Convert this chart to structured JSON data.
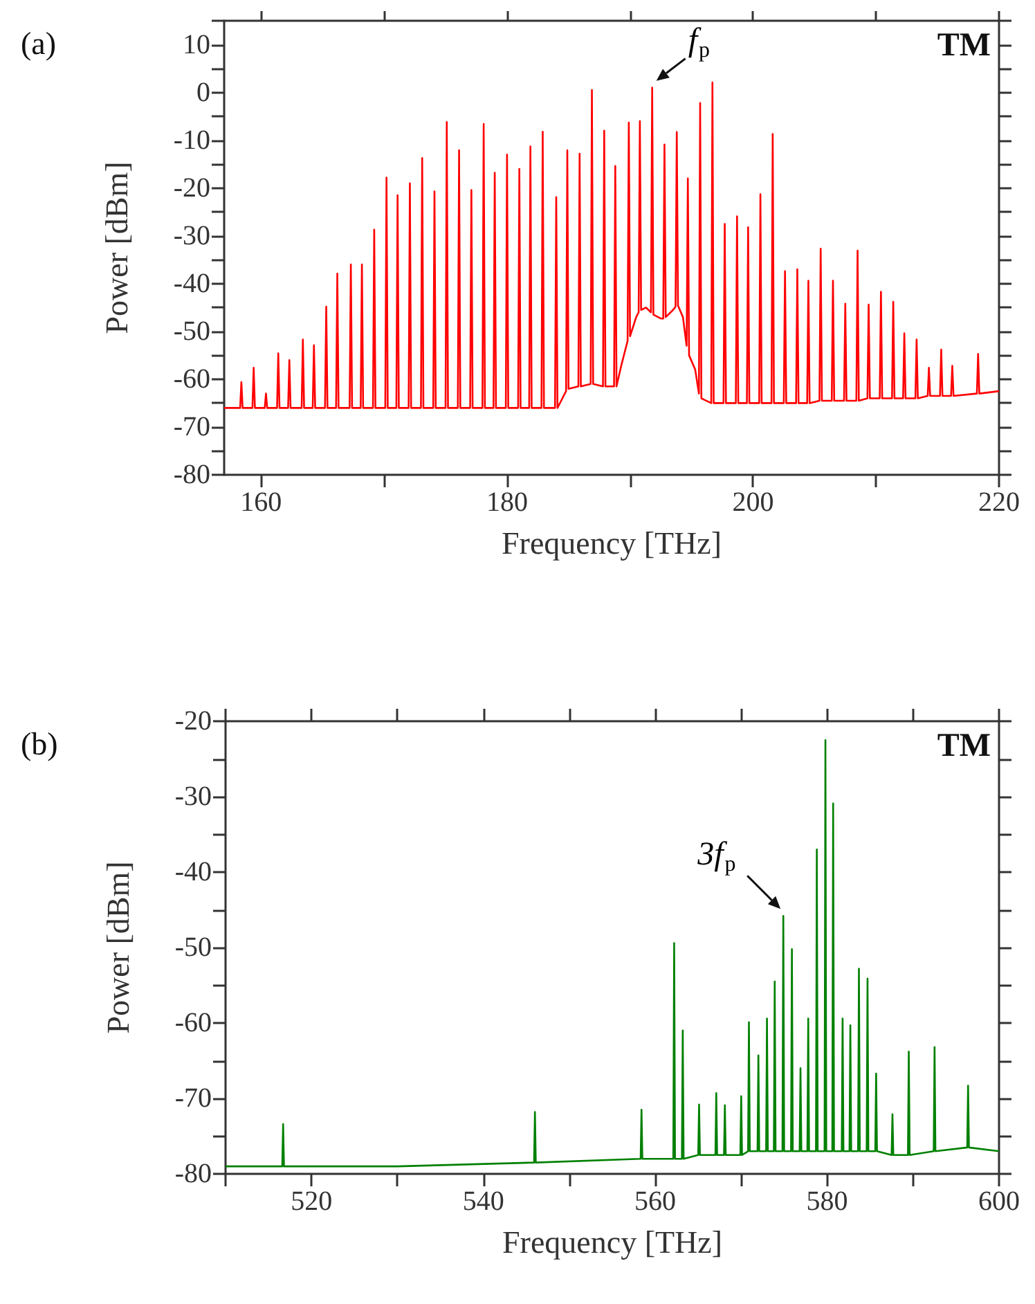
{
  "chart_data": [
    {
      "type": "line",
      "title": "(a)",
      "xlabel": "Frequency [THz]",
      "ylabel": "Power [dBm]",
      "xlim": [
        157,
        220
      ],
      "ylim": [
        -80,
        15
      ],
      "xticks": [
        160,
        {
          "value": 170,
          "label": null
        },
        180,
        {
          "value": 190,
          "label": null
        },
        200,
        {
          "value": 210,
          "label": null
        },
        220
      ],
      "yticks": [
        -80,
        {
          "value": -75,
          "label": null
        },
        -70,
        {
          "value": -65,
          "label": null
        },
        -60,
        {
          "value": -55,
          "label": null
        },
        -50,
        {
          "value": -45,
          "label": null
        },
        -40,
        {
          "value": -35,
          "label": null
        },
        -30,
        {
          "value": -25,
          "label": null
        },
        -20,
        {
          "value": -15,
          "label": null
        },
        -10,
        {
          "value": -5,
          "label": null
        },
        0,
        {
          "value": 5,
          "label": null
        },
        10,
        {
          "value": 15,
          "label": null
        }
      ],
      "annotations": [
        "TM",
        {
          "text": "f$_{p}$",
          "x": 191.8,
          "y": 1
        }
      ],
      "series": [
        {
          "color": "#ff0000",
          "x": [
            157,
            158.3,
            158.4,
            158.5,
            159.3,
            159.4,
            159.5,
            160.3,
            160.4,
            160.5,
            161.3,
            161.4,
            161.5,
            162.2,
            162.3,
            162.4,
            163.3,
            163.4,
            163.5,
            164.2,
            164.3,
            164.4,
            165.2,
            165.3,
            165.4,
            166.1,
            166.2,
            166.3,
            167.2,
            167.3,
            167.4,
            168.1,
            168.2,
            168.3,
            169.1,
            169.2,
            169.3,
            170.1,
            170.2,
            170.3,
            171,
            171.1,
            171.2,
            172,
            172.1,
            172.2,
            173,
            173.1,
            173.2,
            174,
            174.1,
            174.2,
            175,
            175.1,
            175.2,
            176,
            176.1,
            176.2,
            177,
            177.1,
            177.2,
            178,
            178.1,
            178.2,
            178.9,
            179,
            179.1,
            179.9,
            180,
            180.1,
            180.9,
            181,
            181.1,
            181.8,
            181.9,
            182,
            182.8,
            182.9,
            183,
            183.9,
            184,
            184.1,
            184.5,
            184.8,
            184.9,
            185,
            185.8,
            185.9,
            186,
            186.8,
            186.9,
            187,
            187.8,
            187.9,
            188,
            188.7,
            188.8,
            188.9,
            189.3,
            189.8,
            189.9,
            190,
            190.5,
            190.7,
            190.8,
            190.9,
            191.3,
            191.7,
            191.8,
            191.9,
            192.5,
            192.7,
            192.8,
            192.9,
            193.5,
            193.7,
            193.8,
            193.9,
            194.3,
            194.6,
            194.7,
            194.8,
            195.3,
            195.6,
            195.7,
            195.8,
            196.6,
            196.7,
            196.8,
            197.6,
            197.7,
            197.8,
            198.6,
            198.7,
            198.8,
            199.5,
            199.6,
            199.7,
            200.5,
            200.6,
            200.7,
            201.5,
            201.6,
            201.7,
            202.5,
            202.6,
            202.7,
            203.5,
            203.6,
            203.7,
            204.4,
            204.5,
            204.6,
            205.4,
            205.5,
            205.6,
            206.4,
            206.5,
            206.6,
            207.4,
            207.5,
            207.6,
            208.4,
            208.5,
            208.6,
            209.3,
            209.4,
            209.5,
            210.3,
            210.4,
            210.5,
            211.3,
            211.4,
            211.5,
            212.2,
            212.3,
            212.4,
            213.2,
            213.3,
            213.4,
            214.2,
            214.3,
            214.4,
            215.2,
            215.3,
            215.4,
            216.1,
            216.2,
            216.3,
            218.2,
            218.3,
            218.4,
            220
          ],
          "values": [
            -66,
            -66,
            -60.6,
            -66,
            -66,
            -57.6,
            -66,
            -66,
            -63,
            -66,
            -66,
            -54.6,
            -66,
            -66,
            -56,
            -66,
            -66,
            -51.7,
            -66,
            -66,
            -52.9,
            -66,
            -66,
            -44.8,
            -66,
            -66,
            -37.9,
            -66,
            -66,
            -36,
            -66,
            -66,
            -36,
            -66,
            -66,
            -28.7,
            -66,
            -66,
            -17.8,
            -66,
            -66,
            -21.5,
            -66,
            -66,
            -19,
            -66,
            -66,
            -13.7,
            -66,
            -66,
            -20.7,
            -66,
            -66,
            -6.2,
            -66,
            -66,
            -12.1,
            -66,
            -66,
            -20.4,
            -66,
            -66,
            -6.6,
            -66,
            -66,
            -16.8,
            -66,
            -66,
            -13,
            -66,
            -66,
            -16,
            -66,
            -66,
            -11.3,
            -66,
            -66,
            -8.2,
            -66,
            -66,
            -21.9,
            -66,
            -64,
            -62.5,
            -12.1,
            -62,
            -61.5,
            -12.8,
            -61.5,
            -61,
            0.5,
            -61,
            -61.5,
            -8,
            -61.5,
            -61.5,
            -15.4,
            -61.5,
            -57,
            -52,
            -6.3,
            -51,
            -47,
            -46,
            -6,
            -45.5,
            -45,
            -46,
            1,
            -46.5,
            -47.3,
            -47.3,
            -10.9,
            -47,
            -45.5,
            -44.8,
            -8.3,
            -44.6,
            -47,
            -53,
            -18,
            -55,
            -58,
            -63,
            -2.2,
            -64,
            -65,
            2.1,
            -65,
            -65,
            -27.5,
            -65,
            -65,
            -25.9,
            -65,
            -65,
            -28.2,
            -65,
            -65,
            -21.3,
            -65,
            -65,
            -8.7,
            -65,
            -65,
            -37.4,
            -65,
            -65,
            -37,
            -65,
            -65,
            -39.4,
            -65,
            -64.5,
            -32.7,
            -64.5,
            -64.5,
            -39.4,
            -64.5,
            -64.5,
            -44.2,
            -64.5,
            -64.5,
            -33.1,
            -64.5,
            -64,
            -44.4,
            -64,
            -64,
            -41.7,
            -64,
            -64,
            -43.8,
            -64,
            -64,
            -50.4,
            -64,
            -64,
            -51.7,
            -64,
            -63.5,
            -57.6,
            -63.5,
            -63.5,
            -53.8,
            -63.5,
            -63.5,
            -57.2,
            -63.5,
            -63,
            -54.7,
            -63,
            -62.5
          ]
        }
      ]
    },
    {
      "type": "line",
      "title": "(b)",
      "xlabel": "Frequency [THz]",
      "ylabel": "Power [dBm]",
      "xlim": [
        510,
        600
      ],
      "ylim": [
        -80,
        -20
      ],
      "xticks": [
        {
          "value": 510,
          "label": null
        },
        520,
        {
          "value": 530,
          "label": null
        },
        540,
        {
          "value": 550,
          "label": null
        },
        560,
        {
          "value": 570,
          "label": null
        },
        580,
        {
          "value": 590,
          "label": null
        },
        600
      ],
      "yticks": [
        -80,
        {
          "value": -75,
          "label": null
        },
        -70,
        {
          "value": -65,
          "label": null
        },
        -60,
        {
          "value": -55,
          "label": null
        },
        -50,
        {
          "value": -45,
          "label": null
        },
        -40,
        {
          "value": -35,
          "label": null
        },
        -30,
        {
          "value": -25,
          "label": null
        },
        -20
      ],
      "annotations": [
        "TM",
        {
          "text": "3f$_{p}$",
          "x": 574.9,
          "y": -45.8
        }
      ],
      "series": [
        {
          "color": "#008000",
          "x": [
            510,
            516.6,
            516.7,
            516.8,
            530,
            545.9,
            546,
            546.1,
            558.3,
            558.4,
            558.5,
            562.1,
            562.2,
            562.3,
            563.1,
            563.2,
            563.3,
            565,
            565.1,
            565.2,
            567,
            567.1,
            567.2,
            568,
            568.1,
            568.2,
            569.9,
            570,
            570.1,
            570.8,
            570.9,
            571,
            571.9,
            572,
            572.1,
            572.9,
            573,
            573.1,
            573.8,
            573.9,
            574,
            574.8,
            574.9,
            575,
            575.8,
            575.9,
            576,
            576.8,
            576.9,
            577,
            577.7,
            577.8,
            577.9,
            578.7,
            578.8,
            578.9,
            579.7,
            579.8,
            579.9,
            580.6,
            580.7,
            580.8,
            581.7,
            581.8,
            581.9,
            582.6,
            582.7,
            582.8,
            583.6,
            583.7,
            583.8,
            584.6,
            584.7,
            584.8,
            585.6,
            585.7,
            585.8,
            587.5,
            587.6,
            587.7,
            589.4,
            589.5,
            589.6,
            592.4,
            592.5,
            592.6,
            596.3,
            596.4,
            596.5,
            600
          ],
          "values": [
            -79,
            -79,
            -73.4,
            -79,
            -79,
            -78.5,
            -71.8,
            -78.5,
            -78,
            -71.5,
            -78,
            -78,
            -49.4,
            -78,
            -78,
            -61,
            -78,
            -77.5,
            -70.8,
            -77.5,
            -77.5,
            -69.3,
            -77.5,
            -77.5,
            -70.9,
            -77.5,
            -77.5,
            -69.7,
            -77.5,
            -77,
            -59.9,
            -77,
            -77,
            -64.3,
            -77,
            -77,
            -59.4,
            -77,
            -77,
            -54.5,
            -77,
            -77,
            -45.8,
            -77,
            -77,
            -50.2,
            -77,
            -77,
            -66,
            -77,
            -77,
            -59.4,
            -77,
            -77,
            -37,
            -77,
            -77,
            -22.5,
            -77,
            -77,
            -30.9,
            -77,
            -77,
            -59.4,
            -77,
            -77,
            -60.3,
            -77,
            -77,
            -52.8,
            -77,
            -77,
            -54.1,
            -77,
            -77,
            -66.7,
            -77,
            -77.5,
            -72.1,
            -77.5,
            -77.5,
            -63.8,
            -77.5,
            -77,
            -63.2,
            -77,
            -76.5,
            -68.3,
            -76.5,
            -77
          ]
        }
      ]
    }
  ]
}
